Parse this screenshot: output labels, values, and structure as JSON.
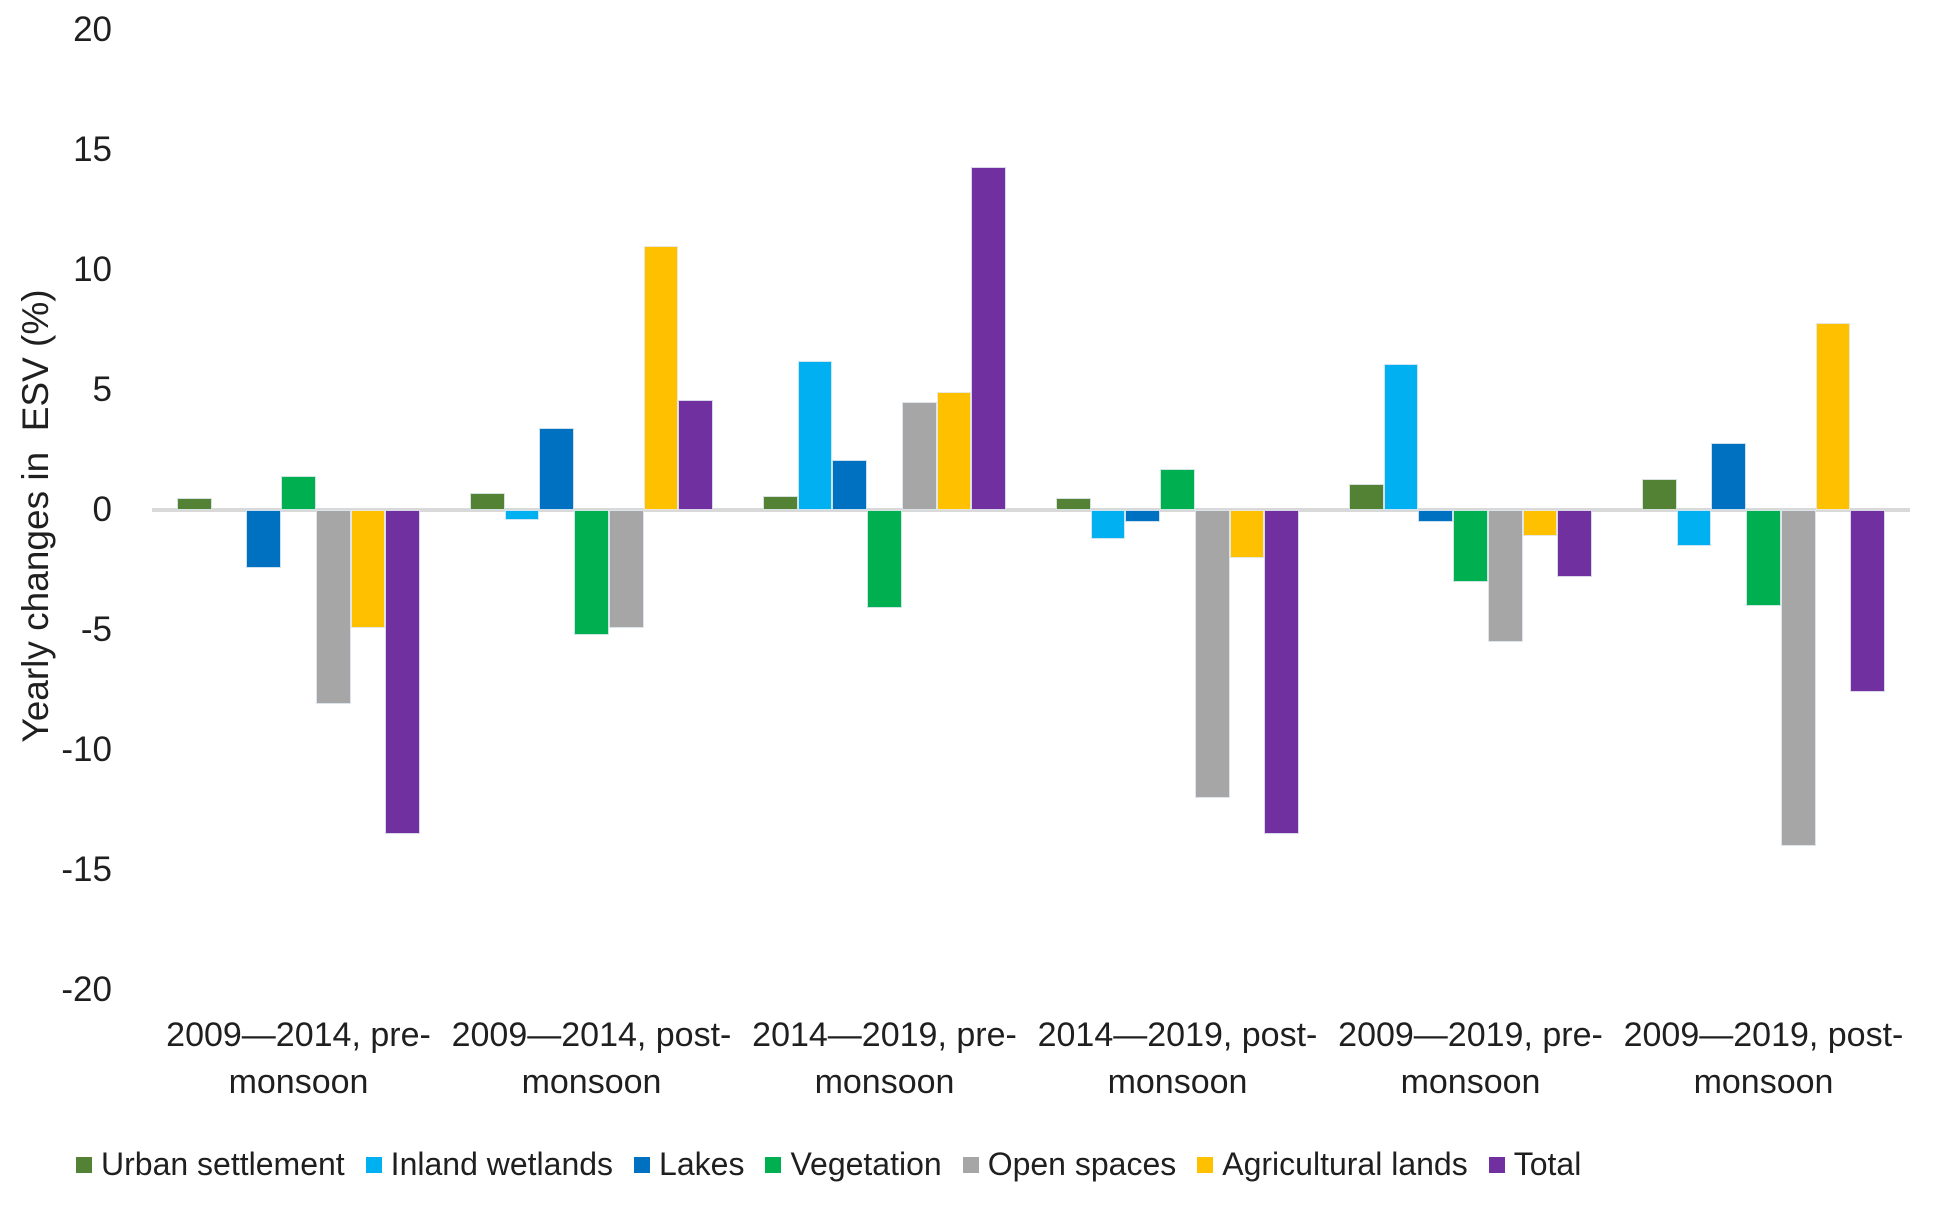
{
  "chart_data": {
    "type": "bar",
    "title": "",
    "xlabel": "",
    "ylabel": "Yearly changes in  ESV (%)",
    "ylim": [
      -20,
      20
    ],
    "yticks": [
      20,
      15,
      10,
      5,
      0,
      -5,
      -10,
      -15,
      -20
    ],
    "grid": false,
    "legend_position": "bottom",
    "axis_line_color": "#d9d9d9",
    "text_color": "#1f1f1f",
    "categories": [
      "2009—2014, pre-monsoon",
      "2009—2014, post-monsoon",
      "2014—2019, pre-monsoon",
      "2014—2019, post-monsoon",
      "2009—2019, pre-monsoon",
      "2009—2019, post-monsoon"
    ],
    "series": [
      {
        "name": "Urban settlement",
        "color": "#548235",
        "values": [
          0.5,
          0.7,
          0.6,
          0.5,
          1.1,
          1.3
        ]
      },
      {
        "name": "Inland wetlands",
        "color": "#00b0f0",
        "values": [
          0.0,
          -0.4,
          6.2,
          -1.2,
          6.1,
          -1.5
        ]
      },
      {
        "name": "Lakes",
        "color": "#0070c0",
        "values": [
          -2.4,
          3.4,
          2.1,
          -0.5,
          -0.5,
          2.8
        ]
      },
      {
        "name": "Vegetation",
        "color": "#00b050",
        "values": [
          1.4,
          -5.2,
          -4.1,
          1.7,
          -3.0,
          -4.0
        ]
      },
      {
        "name": "Open spaces",
        "color": "#a6a6a6",
        "values": [
          -8.1,
          -4.9,
          4.5,
          -12.0,
          -5.5,
          -14.0
        ]
      },
      {
        "name": "Agricultural lands",
        "color": "#ffc000",
        "values": [
          -4.9,
          11.0,
          4.9,
          -2.0,
          -1.1,
          7.8
        ]
      },
      {
        "name": "Total",
        "color": "#7030a0",
        "values": [
          -13.5,
          4.6,
          14.3,
          -13.5,
          -2.8,
          -7.6
        ]
      }
    ]
  }
}
